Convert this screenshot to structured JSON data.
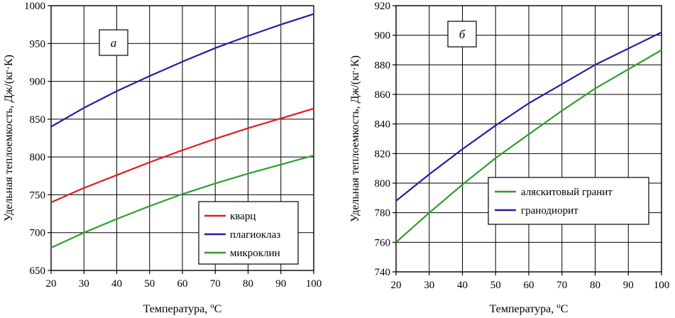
{
  "chart_data": [
    {
      "type": "line",
      "panel_label": "а",
      "xlabel": "Температура, ",
      "xlabel_unit_sup": "o",
      "xlabel_unit": "C",
      "ylabel": "Удельная теплоемкость, Дж/(кг·К)",
      "xlim": [
        20,
        100
      ],
      "ylim": [
        650,
        1000
      ],
      "xticks": [
        20,
        30,
        40,
        50,
        60,
        70,
        80,
        90,
        100
      ],
      "yticks": [
        650,
        700,
        750,
        800,
        850,
        900,
        950,
        1000
      ],
      "grid": true,
      "legend_position": "bottom-right",
      "x": [
        20,
        30,
        40,
        50,
        60,
        70,
        80,
        90,
        100
      ],
      "series": [
        {
          "name": "кварц",
          "color": "#e41a1c",
          "values": [
            740,
            759,
            776,
            793,
            809,
            824,
            838,
            851,
            864
          ]
        },
        {
          "name": "плагиоклаз",
          "color": "#1f1fa8",
          "values": [
            840,
            865,
            887,
            907,
            926,
            944,
            960,
            975,
            989
          ]
        },
        {
          "name": "микроклин",
          "color": "#2ca02c",
          "values": [
            680,
            700,
            718,
            735,
            751,
            765,
            778,
            790,
            802
          ]
        }
      ]
    },
    {
      "type": "line",
      "panel_label": "б",
      "xlabel": "Температура, ",
      "xlabel_unit_sup": "o",
      "xlabel_unit": "C",
      "ylabel": "Удельная теплоемкость, Дж/(кг·К)",
      "xlim": [
        20,
        100
      ],
      "ylim": [
        740,
        920
      ],
      "xticks": [
        20,
        30,
        40,
        50,
        60,
        70,
        80,
        90,
        100
      ],
      "yticks": [
        740,
        760,
        780,
        800,
        820,
        840,
        860,
        880,
        900,
        920
      ],
      "grid": true,
      "legend_position": "center-right",
      "x": [
        20,
        30,
        40,
        50,
        60,
        70,
        80,
        90,
        100
      ],
      "series": [
        {
          "name": "аляскитовый гранит",
          "color": "#2ca02c",
          "values": [
            760,
            780,
            799,
            817,
            833,
            849,
            864,
            877,
            890
          ]
        },
        {
          "name": "гранодиорит",
          "color": "#1f1fa8",
          "values": [
            788,
            806,
            823,
            839,
            854,
            867,
            880,
            891,
            902
          ]
        }
      ]
    }
  ]
}
